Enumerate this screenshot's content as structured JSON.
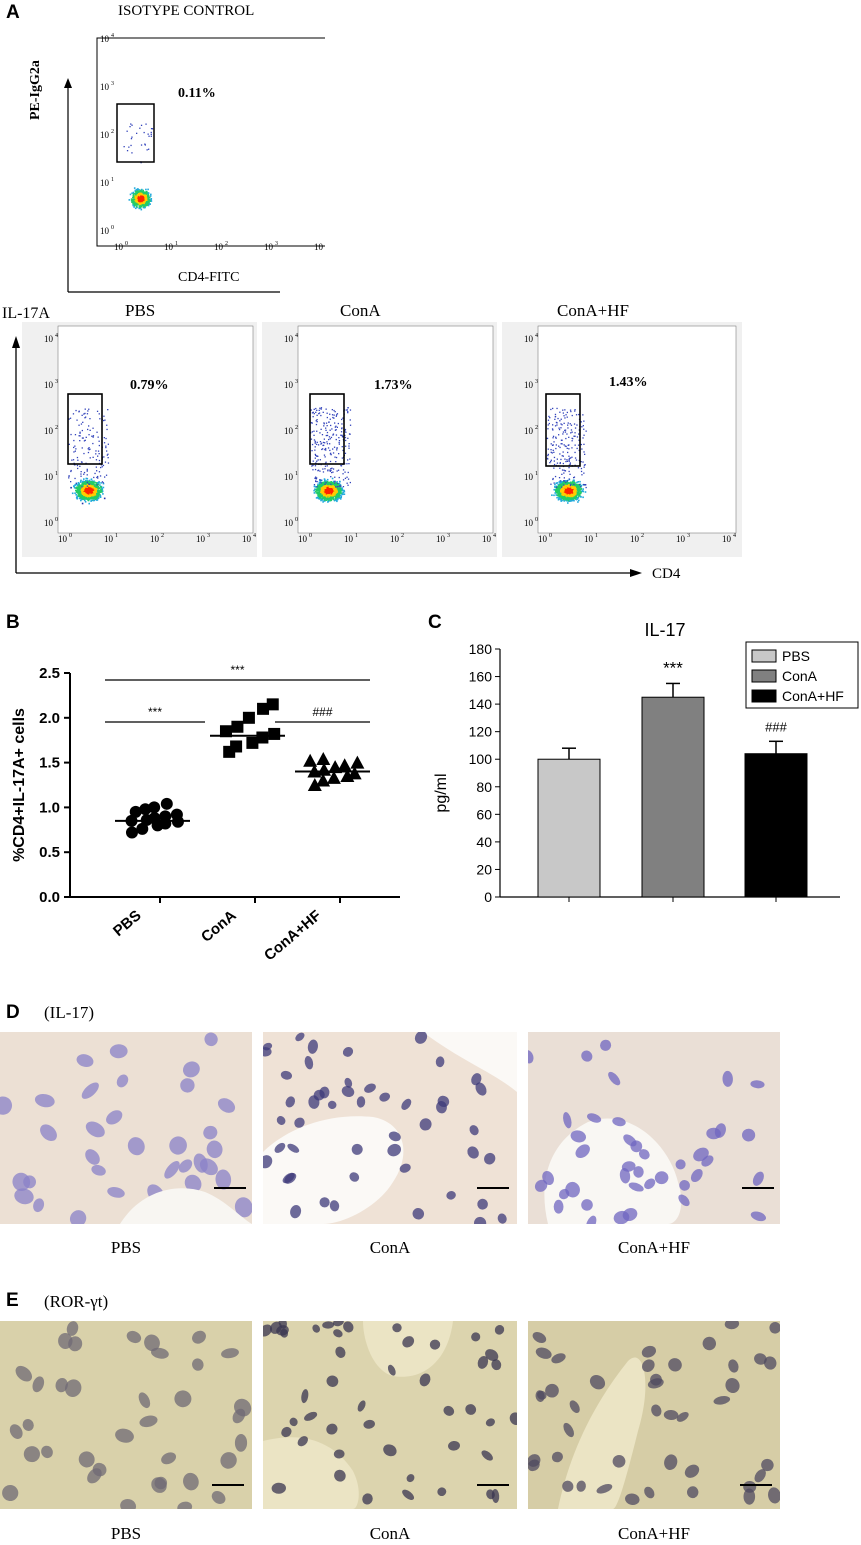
{
  "panel_letters": {
    "a": "A",
    "b": "B",
    "c": "C",
    "d": "D",
    "e": "E"
  },
  "panel_a": {
    "isotype": {
      "title": "ISOTYPE CONTROL",
      "y_label": "PE-IgG2a",
      "x_label": "CD4-FITC",
      "gate_percent": "0.11%"
    },
    "row_y_label": "IL-17A",
    "row_x_label": "CD4",
    "plots": [
      {
        "title": "PBS",
        "gate_percent": "0.79%"
      },
      {
        "title": "ConA",
        "gate_percent": "1.73%"
      },
      {
        "title": "ConA+HF",
        "gate_percent": "1.43%"
      }
    ],
    "log_ticks": [
      "10",
      "10",
      "10",
      "10",
      "10"
    ],
    "log_exponents": [
      "0",
      "1",
      "2",
      "3",
      "4"
    ]
  },
  "chart_data": [
    {
      "type": "scatter",
      "panel": "B",
      "ylabel": "%CD4+IL-17A+ cells",
      "categories": [
        "PBS",
        "ConA",
        "ConA+HF"
      ],
      "y_ticks": [
        "0.0",
        "0.5",
        "1.0",
        "1.5",
        "2.0",
        "2.5"
      ],
      "ylim": [
        0,
        2.5
      ],
      "markers": [
        "circle",
        "square",
        "triangle"
      ],
      "means": [
        0.85,
        1.8,
        1.4
      ],
      "points": [
        [
          0.72,
          0.76,
          0.8,
          0.82,
          0.84,
          0.85,
          0.86,
          0.88,
          0.9,
          0.92,
          0.95,
          0.98,
          1.0,
          1.04
        ],
        [
          1.62,
          1.68,
          1.72,
          1.78,
          1.82,
          1.85,
          1.9,
          2.0,
          2.1,
          2.15
        ],
        [
          1.25,
          1.3,
          1.33,
          1.35,
          1.38,
          1.4,
          1.42,
          1.45,
          1.47,
          1.5,
          1.52,
          1.54
        ]
      ],
      "significance": [
        {
          "from": 0,
          "to": 2,
          "label": "***"
        },
        {
          "from": 0,
          "to": 1,
          "label": "***"
        },
        {
          "from": 1,
          "to": 2,
          "label": "###"
        }
      ]
    },
    {
      "type": "bar",
      "panel": "C",
      "title": "IL-17",
      "ylabel": "pg/ml",
      "y_ticks": [
        "0",
        "20",
        "40",
        "60",
        "80",
        "100",
        "120",
        "140",
        "160",
        "180"
      ],
      "ylim": [
        0,
        180
      ],
      "categories": [
        "PBS",
        "ConA",
        "ConA+HF"
      ],
      "values": [
        100,
        145,
        104
      ],
      "errors": [
        8,
        10,
        9
      ],
      "colors": [
        "#c8c8c8",
        "#808080",
        "#000000"
      ],
      "annotations": [
        "",
        "***",
        "###"
      ],
      "legend": [
        "PBS",
        "ConA",
        "ConA+HF"
      ],
      "legend_position": "top-right"
    }
  ],
  "panel_d": {
    "stain": "(IL-17)",
    "captions": [
      "PBS",
      "ConA",
      "ConA+HF"
    ]
  },
  "panel_e": {
    "stain": "(ROR-γt)",
    "captions": [
      "PBS",
      "ConA",
      "ConA+HF"
    ]
  }
}
